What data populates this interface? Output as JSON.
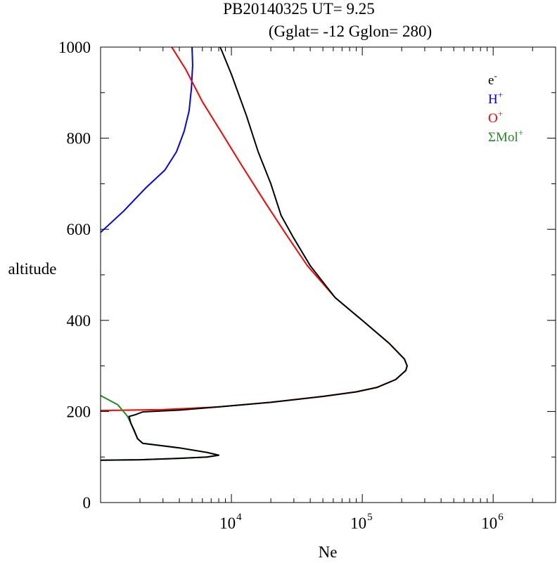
{
  "chart_data": {
    "type": "line",
    "title": {
      "line1": "PB20140325   UT=  9.25",
      "line2": "(Gglat= -12   Gglon=  280)"
    },
    "xlabel": "Ne",
    "ylabel": "altitude",
    "x_scale": "log",
    "xlim": [
      1000,
      3000000
    ],
    "ylim": [
      0,
      1000
    ],
    "x_ticks": [
      {
        "value": 10000,
        "base": "10",
        "exp": "4"
      },
      {
        "value": 100000,
        "base": "10",
        "exp": "5"
      },
      {
        "value": 1000000,
        "base": "10",
        "exp": "6"
      }
    ],
    "y_ticks": [
      {
        "value": 0,
        "label": "0"
      },
      {
        "value": 200,
        "label": "200"
      },
      {
        "value": 400,
        "label": "400"
      },
      {
        "value": 600,
        "label": "600"
      },
      {
        "value": 800,
        "label": "800"
      },
      {
        "value": 1000,
        "label": "1000"
      }
    ],
    "legend_position": "top-right",
    "series": [
      {
        "name": "H+",
        "legend": {
          "base": "H",
          "sup": "+"
        },
        "color": "#0000ff",
        "points": [
          [
            1000,
            593
          ],
          [
            1500,
            640
          ],
          [
            2200,
            690
          ],
          [
            3100,
            730
          ],
          [
            3800,
            770
          ],
          [
            4350,
            815
          ],
          [
            4750,
            860
          ],
          [
            4950,
            910
          ],
          [
            5050,
            960
          ],
          [
            5000,
            1000
          ]
        ]
      },
      {
        "name": "O+",
        "legend": {
          "base": "O",
          "sup": "+"
        },
        "color": "#ff0000",
        "points": [
          [
            1000,
            202
          ],
          [
            3000,
            204
          ],
          [
            8000,
            210
          ],
          [
            20000,
            220
          ],
          [
            50000,
            233
          ],
          [
            90000,
            243
          ],
          [
            130000,
            253
          ],
          [
            180000,
            270
          ],
          [
            215000,
            290
          ],
          [
            220000,
            300
          ],
          [
            210000,
            315
          ],
          [
            160000,
            350
          ],
          [
            100000,
            400
          ],
          [
            62000,
            450
          ],
          [
            38000,
            520
          ],
          [
            26000,
            590
          ],
          [
            18000,
            660
          ],
          [
            12000,
            740
          ],
          [
            8500,
            810
          ],
          [
            6000,
            880
          ],
          [
            4500,
            950
          ],
          [
            3500,
            1000
          ]
        ]
      },
      {
        "name": "ΣMol+",
        "legend": {
          "base": "ΣMol",
          "sup": "+"
        },
        "color": "#228b22",
        "points": [
          [
            1000,
            235
          ],
          [
            1350,
            215
          ],
          [
            1600,
            190
          ],
          [
            1800,
            160
          ],
          [
            1920,
            140
          ],
          [
            2100,
            130
          ],
          [
            4000,
            120
          ],
          [
            6500,
            110
          ],
          [
            8000,
            104
          ],
          [
            6500,
            100
          ],
          [
            4000,
            97
          ],
          [
            2000,
            94
          ],
          [
            1000,
            93
          ]
        ]
      },
      {
        "name": "e-",
        "legend": {
          "base": "e",
          "sup": "-"
        },
        "color": "#000000",
        "points": [
          [
            1000,
            93
          ],
          [
            2000,
            94
          ],
          [
            4000,
            97
          ],
          [
            6500,
            100
          ],
          [
            8000,
            104
          ],
          [
            6500,
            110
          ],
          [
            4000,
            120
          ],
          [
            2100,
            130
          ],
          [
            1920,
            140
          ],
          [
            1700,
            175
          ],
          [
            1650,
            189
          ],
          [
            1850,
            193
          ],
          [
            2100,
            199
          ],
          [
            4000,
            203
          ],
          [
            8000,
            210
          ],
          [
            20000,
            220
          ],
          [
            50000,
            233
          ],
          [
            90000,
            243
          ],
          [
            130000,
            253
          ],
          [
            180000,
            270
          ],
          [
            215000,
            290
          ],
          [
            220000,
            300
          ],
          [
            210000,
            315
          ],
          [
            160000,
            350
          ],
          [
            100000,
            400
          ],
          [
            62000,
            450
          ],
          [
            40000,
            520
          ],
          [
            30000,
            580
          ],
          [
            24000,
            630
          ],
          [
            20000,
            700
          ],
          [
            16000,
            770
          ],
          [
            13000,
            850
          ],
          [
            10000,
            940
          ],
          [
            8500,
            990
          ],
          [
            8200,
            1000
          ]
        ]
      }
    ]
  }
}
